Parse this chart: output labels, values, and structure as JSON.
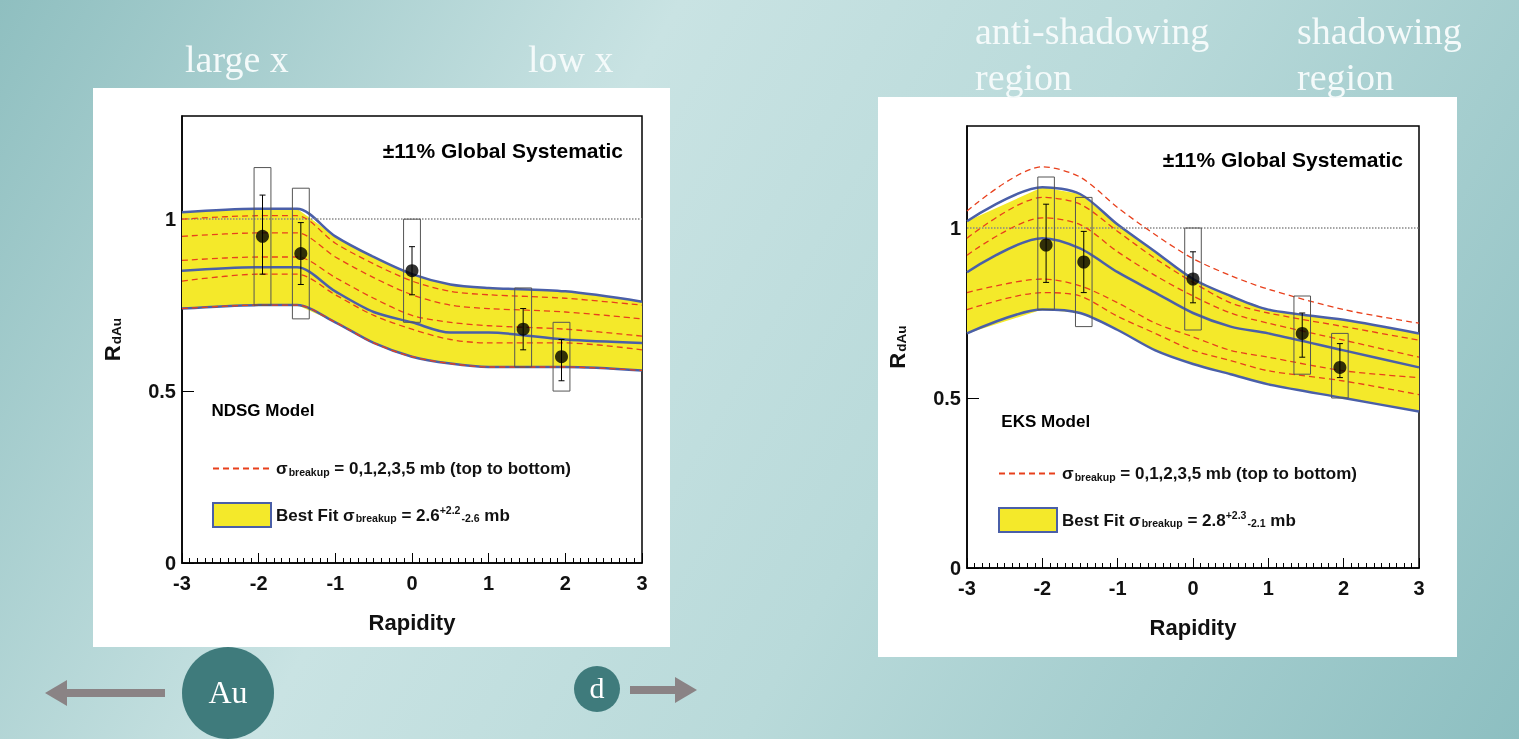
{
  "chart_data": [
    {
      "type": "line",
      "xlabel": "Rapidity",
      "ylabel": "R$_{dAu}$",
      "xlim": [
        -3,
        3
      ],
      "xticks": [
        -3,
        -2,
        -1,
        0,
        1,
        2,
        3
      ],
      "ylim": [
        0,
        1.3
      ],
      "yticks": [
        0,
        0.5,
        1
      ],
      "legend": "bottom left",
      "annotations": [
        "±11% Global Systematic",
        "NDSG Model",
        "large x",
        "low x",
        "Au",
        "d"
      ],
      "ref_lines": [
        {
          "axis": "y",
          "value": 1,
          "color": "#888888",
          "line_style": "dotted"
        }
      ],
      "series": [
        {
          "name": "σ$_{breakup}$ = 0,1,2,3,5 mb (top to bottom)",
          "color": "#e8401c",
          "line_style": "dashed",
          "marker": "none",
          "x": [
            -3,
            -2,
            -1.5,
            -1,
            -0.5,
            0,
            0.5,
            1,
            2,
            3
          ],
          "values": [
            1.0,
            1.01,
            1.01,
            0.93,
            0.87,
            0.82,
            0.79,
            0.78,
            0.77,
            0.75
          ]
        },
        {
          "color": "#e8401c",
          "line_style": "dashed",
          "marker": "none",
          "x": [
            -3,
            -2,
            -1.5,
            -1,
            -0.5,
            0,
            0.5,
            1,
            2,
            3
          ],
          "values": [
            0.95,
            0.96,
            0.96,
            0.89,
            0.83,
            0.78,
            0.75,
            0.74,
            0.73,
            0.71
          ]
        },
        {
          "color": "#e8401c",
          "line_style": "dashed",
          "marker": "none",
          "x": [
            -3,
            -2,
            -1.5,
            -1,
            -0.5,
            0,
            0.5,
            1,
            2,
            3
          ],
          "values": [
            0.88,
            0.89,
            0.89,
            0.83,
            0.77,
            0.72,
            0.7,
            0.69,
            0.68,
            0.66
          ]
        },
        {
          "color": "#e8401c",
          "line_style": "dashed",
          "marker": "none",
          "x": [
            -3,
            -2,
            -1.5,
            -1,
            -0.5,
            0,
            0.5,
            1,
            2,
            3
          ],
          "values": [
            0.82,
            0.84,
            0.84,
            0.78,
            0.72,
            0.68,
            0.65,
            0.64,
            0.64,
            0.62
          ]
        },
        {
          "color": "#e8401c",
          "line_style": "dashed",
          "marker": "none",
          "x": [
            -3,
            -2,
            -1.5,
            -1,
            -0.5,
            0,
            0.5,
            1,
            2,
            3
          ],
          "values": [
            0.74,
            0.75,
            0.75,
            0.7,
            0.64,
            0.6,
            0.58,
            0.57,
            0.57,
            0.56
          ]
        },
        {
          "color": "#4a5fa8",
          "line_style": "solid",
          "marker": "none",
          "x": [
            -3,
            -2,
            -1.5,
            -1,
            -0.5,
            0,
            0.5,
            1,
            2,
            3
          ],
          "values": [
            1.02,
            1.03,
            1.03,
            0.95,
            0.89,
            0.84,
            0.81,
            0.8,
            0.79,
            0.76
          ]
        },
        {
          "color": "#4a5fa8",
          "line_style": "solid",
          "marker": "none",
          "x": [
            -3,
            -2,
            -1.5,
            -1,
            -0.5,
            0,
            0.5,
            1,
            2,
            3
          ],
          "values": [
            0.74,
            0.75,
            0.75,
            0.7,
            0.64,
            0.6,
            0.58,
            0.57,
            0.57,
            0.56
          ]
        },
        {
          "name": "Best Fit σ$_{breakup}$ = 2.6$^{+2.2}$$_{-2.6}$ mb",
          "color": "#4a5fa8",
          "line_style": "solid",
          "marker": "none",
          "x": [
            -3,
            -2,
            -1.5,
            -1,
            -0.5,
            0,
            0.5,
            1,
            2,
            3
          ],
          "values": [
            0.85,
            0.86,
            0.86,
            0.79,
            0.73,
            0.7,
            0.67,
            0.67,
            0.65,
            0.64
          ],
          "lower": [
            0.74,
            0.75,
            0.75,
            0.7,
            0.64,
            0.6,
            0.58,
            0.57,
            0.57,
            0.56
          ],
          "upper": [
            1.02,
            1.03,
            1.03,
            0.95,
            0.89,
            0.84,
            0.81,
            0.8,
            0.79,
            0.76
          ]
        },
        {
          "type": "bar",
          "color": "#555555",
          "x": [
            -1.95,
            -1.45,
            0,
            1.45,
            1.95
          ],
          "base": [
            0.75,
            0.71,
            0.7,
            0.57,
            0.5
          ],
          "values": [
            0.4,
            0.38,
            0.3,
            0.23,
            0.2
          ]
        },
        {
          "type": "scatter",
          "color": "#000000",
          "marker": "circle",
          "x": [
            -1.95,
            -1.45,
            0,
            1.45,
            1.95
          ],
          "values": [
            0.95,
            0.9,
            0.85,
            0.68,
            0.6
          ],
          "errors": [
            [
              0.84,
              1.07
            ],
            [
              0.81,
              0.99
            ],
            [
              0.78,
              0.92
            ],
            [
              0.62,
              0.74
            ],
            [
              0.53,
              0.65
            ]
          ]
        }
      ]
    },
    {
      "type": "line",
      "xlabel": "Rapidity",
      "ylabel": "R$_{dAu}$",
      "xlim": [
        -3,
        3
      ],
      "xticks": [
        -3,
        -2,
        -1,
        0,
        1,
        2,
        3
      ],
      "ylim": [
        0,
        1.3
      ],
      "yticks": [
        0,
        0.5,
        1
      ],
      "legend": "bottom left",
      "annotations": [
        "±11% Global Systematic",
        "EKS Model",
        "anti-shadowing region",
        "shadowing region"
      ],
      "ref_lines": [
        {
          "axis": "y",
          "value": 1,
          "color": "#888888",
          "line_style": "dotted"
        }
      ],
      "series": [
        {
          "name": "σ$_{breakup}$ = 0,1,2,3,5 mb (top to bottom)",
          "color": "#e8401c",
          "line_style": "dashed",
          "marker": "none",
          "x": [
            -3,
            -2,
            -1.5,
            -1,
            -0.5,
            0,
            0.5,
            1,
            2,
            3
          ],
          "values": [
            1.05,
            1.18,
            1.15,
            1.06,
            0.98,
            0.91,
            0.86,
            0.82,
            0.76,
            0.72
          ]
        },
        {
          "color": "#e8401c",
          "line_style": "dashed",
          "marker": "none",
          "x": [
            -3,
            -2,
            -1.5,
            -1,
            -0.5,
            0,
            0.5,
            1,
            2,
            3
          ],
          "values": [
            0.97,
            1.09,
            1.07,
            0.99,
            0.91,
            0.84,
            0.78,
            0.75,
            0.71,
            0.67
          ]
        },
        {
          "color": "#e8401c",
          "line_style": "dashed",
          "marker": "none",
          "x": [
            -3,
            -2,
            -1.5,
            -1,
            -0.5,
            0,
            0.5,
            1,
            2,
            3
          ],
          "values": [
            0.92,
            1.03,
            1.01,
            0.93,
            0.86,
            0.8,
            0.75,
            0.72,
            0.67,
            0.62
          ]
        },
        {
          "color": "#e8401c",
          "line_style": "dashed",
          "marker": "none",
          "x": [
            -3,
            -2,
            -1.5,
            -1,
            -0.5,
            0,
            0.5,
            1,
            2,
            3
          ],
          "values": [
            0.81,
            0.85,
            0.83,
            0.78,
            0.72,
            0.68,
            0.64,
            0.62,
            0.58,
            0.56
          ]
        },
        {
          "color": "#e8401c",
          "line_style": "dashed",
          "marker": "none",
          "x": [
            -3,
            -2,
            -1.5,
            -1,
            -0.5,
            0,
            0.5,
            1,
            2,
            3
          ],
          "values": [
            0.76,
            0.81,
            0.8,
            0.74,
            0.69,
            0.64,
            0.61,
            0.58,
            0.55,
            0.51
          ]
        },
        {
          "color": "#4a5fa8",
          "line_style": "solid",
          "marker": "none",
          "x": [
            -3,
            -2,
            -1.5,
            -1,
            -0.5,
            0,
            0.5,
            1,
            2,
            3
          ],
          "values": [
            1.02,
            1.12,
            1.1,
            1.01,
            0.93,
            0.85,
            0.8,
            0.76,
            0.73,
            0.69
          ]
        },
        {
          "color": "#4a5fa8",
          "line_style": "solid",
          "marker": "none",
          "x": [
            -3,
            -2,
            -1.5,
            -1,
            -0.5,
            0,
            0.5,
            1,
            2,
            3
          ],
          "values": [
            0.69,
            0.76,
            0.75,
            0.7,
            0.64,
            0.6,
            0.57,
            0.54,
            0.5,
            0.46
          ]
        },
        {
          "name": "Best Fit σ$_{breakup}$ = 2.8$^{+2.3}$$_{-2.1}$ mb",
          "color": "#4a5fa8",
          "line_style": "solid",
          "marker": "none",
          "x": [
            -3,
            -2,
            -1.5,
            -1,
            -0.5,
            0,
            0.5,
            1,
            2,
            3
          ],
          "values": [
            0.87,
            0.97,
            0.94,
            0.87,
            0.81,
            0.75,
            0.71,
            0.69,
            0.64,
            0.59
          ],
          "lower": [
            0.69,
            0.76,
            0.75,
            0.7,
            0.64,
            0.6,
            0.57,
            0.54,
            0.5,
            0.46
          ],
          "upper": [
            1.02,
            1.12,
            1.1,
            1.01,
            0.93,
            0.85,
            0.8,
            0.76,
            0.73,
            0.69
          ]
        },
        {
          "type": "bar",
          "color": "#555555",
          "x": [
            -1.95,
            -1.45,
            0,
            1.45,
            1.95
          ],
          "base": [
            0.76,
            0.71,
            0.7,
            0.57,
            0.5
          ],
          "values": [
            0.39,
            0.38,
            0.3,
            0.23,
            0.19
          ]
        },
        {
          "type": "scatter",
          "color": "#000000",
          "marker": "circle",
          "x": [
            -1.95,
            -1.45,
            0,
            1.45,
            1.95
          ],
          "values": [
            0.95,
            0.9,
            0.85,
            0.69,
            0.59
          ],
          "errors": [
            [
              0.84,
              1.07
            ],
            [
              0.81,
              0.99
            ],
            [
              0.78,
              0.93
            ],
            [
              0.62,
              0.75
            ],
            [
              0.56,
              0.66
            ]
          ]
        }
      ]
    }
  ]
}
